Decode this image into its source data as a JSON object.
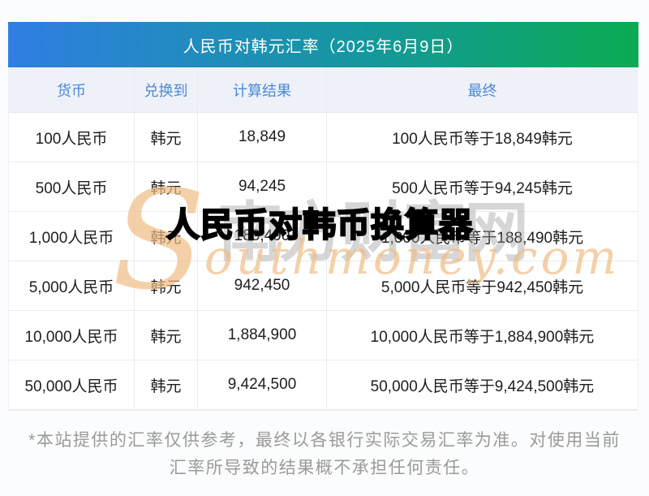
{
  "title_bar": {
    "title": "人民币对韩元汇率（2025年6月9日）",
    "gradient_left": "#2f7ee2",
    "gradient_right": "#0aab51",
    "text_color": "#ffffff"
  },
  "table": {
    "headers": [
      "货币",
      "兑换到",
      "计算结果",
      "最终"
    ],
    "header_text_color": "#4a89d8",
    "header_bg": "#eef1f8",
    "border_color": "#e9ebef",
    "rows": [
      {
        "currency": "100人民币",
        "to": "韩元",
        "result": "18,849",
        "final": "100人民币等于18,849韩元"
      },
      {
        "currency": "500人民币",
        "to": "韩元",
        "result": "94,245",
        "final": "500人民币等于94,245韩元"
      },
      {
        "currency": "1,000人民币",
        "to": "韩元",
        "result": "188,490",
        "final": "1,000人民币等于188,490韩元"
      },
      {
        "currency": "5,000人民币",
        "to": "韩元",
        "result": "942,450",
        "final": "5,000人民币等于942,450韩元"
      },
      {
        "currency": "10,000人民币",
        "to": "韩元",
        "result": "1,884,900",
        "final": "10,000人民币等于1,884,900韩元"
      },
      {
        "currency": "50,000人民币",
        "to": "韩元",
        "result": "9,424,500",
        "final": "50,000人民币等于9,424,500韩元"
      }
    ]
  },
  "watermarks": {
    "overlay_title": "人民币对韩币换算器",
    "site_name_gray": "南方财富网",
    "site_logo_initial": "S",
    "site_domain_rest": "outhmoney.com",
    "orange_color": "#f0bd85",
    "gray_color": "#9f9f9f"
  },
  "footer": {
    "line1": "*本站提供的汇率仅供参考，最终以各银行实际交易汇率为准。对使用当前",
    "line2": "汇率所导致的结果概不承担任何责任。"
  }
}
